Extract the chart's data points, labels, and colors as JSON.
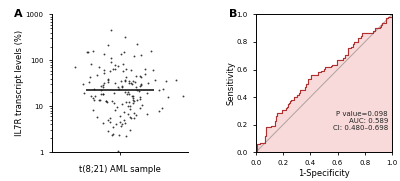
{
  "panel_a_label": "A",
  "panel_b_label": "B",
  "scatter_xlabel": "t(8;21) AML sample",
  "scatter_ylabel": "IL7R transcript levels (%)",
  "scatter_ylim_log": [
    1,
    1000
  ],
  "scatter_yticks": [
    1,
    10,
    100,
    1000
  ],
  "scatter_median": 22,
  "scatter_color": "#1a1a1a",
  "scatter_marker_size": 1.8,
  "roc_xlabel": "1-Specificity",
  "roc_ylabel": "Sensitivity",
  "roc_xlim": [
    0.0,
    1.0
  ],
  "roc_ylim": [
    0.0,
    1.0
  ],
  "roc_xticks": [
    0.0,
    0.2,
    0.4,
    0.6,
    0.8,
    1.0
  ],
  "roc_yticks": [
    0.0,
    0.2,
    0.4,
    0.6,
    0.8,
    1.0
  ],
  "roc_color": "#b03030",
  "roc_fill_color": "#f8dada",
  "roc_annotation": "P value=0.098\nAUC: 0.589\nCI: 0.480–0.698",
  "roc_annotation_fontsize": 5.0,
  "annotation_color": "#222222",
  "background_color": "#ffffff",
  "panel_label_fontsize": 8,
  "axis_label_fontsize": 6.0,
  "tick_fontsize": 5.0,
  "scatter_n_points": 150,
  "scatter_log_mean": 1.38,
  "scatter_log_std": 0.52
}
